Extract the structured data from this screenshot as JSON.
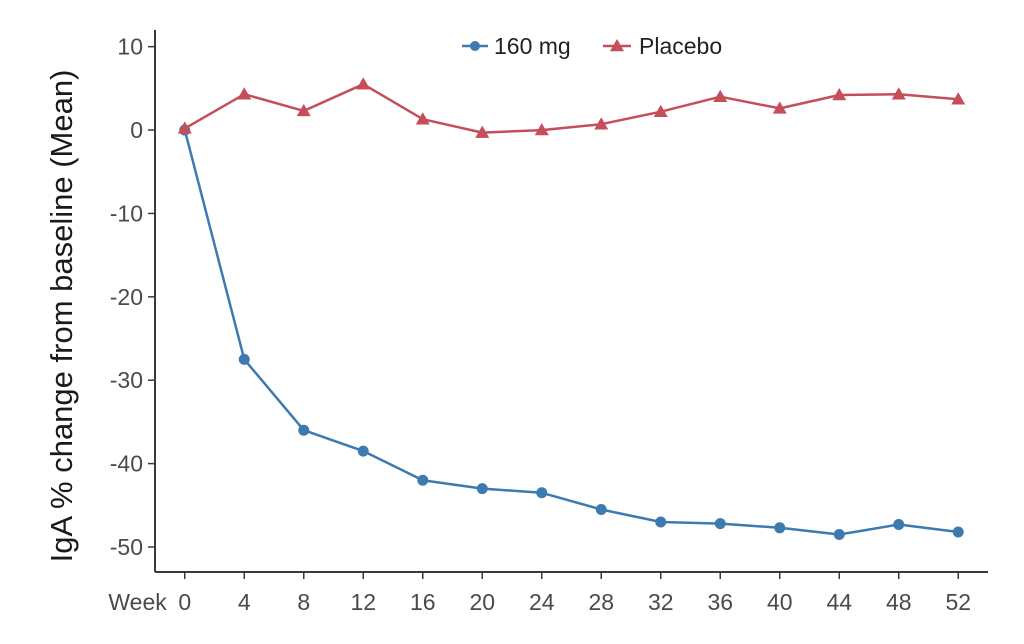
{
  "chart_data": {
    "type": "line",
    "title": "",
    "xlabel": "Week",
    "ylabel": "IgA % change from baseline (Mean)",
    "x": [
      0,
      4,
      8,
      12,
      16,
      20,
      24,
      28,
      32,
      36,
      40,
      44,
      48,
      52
    ],
    "xticks": [
      "0",
      "4",
      "8",
      "12",
      "16",
      "20",
      "24",
      "28",
      "32",
      "36",
      "40",
      "44",
      "48",
      "52"
    ],
    "yticks": [
      "10",
      "0",
      "-10",
      "-20",
      "-30",
      "-40",
      "-50"
    ],
    "ytick_values": [
      10,
      0,
      -10,
      -20,
      -30,
      -40,
      -50
    ],
    "ylim": [
      -53,
      12
    ],
    "xlim": [
      -2,
      54
    ],
    "grid": false,
    "legend_position": "top-center",
    "series": [
      {
        "name": "160 mg",
        "color": "#3d7ab0",
        "marker": "circle",
        "values": [
          0,
          -27.5,
          -36,
          -38.5,
          -42,
          -43,
          -43.5,
          -45.5,
          -47,
          -47.2,
          -47.7,
          -48.5,
          -47.3,
          -48.2
        ]
      },
      {
        "name": "Placebo",
        "color": "#c44e5a",
        "marker": "triangle",
        "values": [
          0.2,
          4.3,
          2.3,
          5.5,
          1.3,
          -0.3,
          0,
          0.7,
          2.2,
          4,
          2.6,
          4.2,
          4.3,
          3.7
        ]
      }
    ]
  }
}
